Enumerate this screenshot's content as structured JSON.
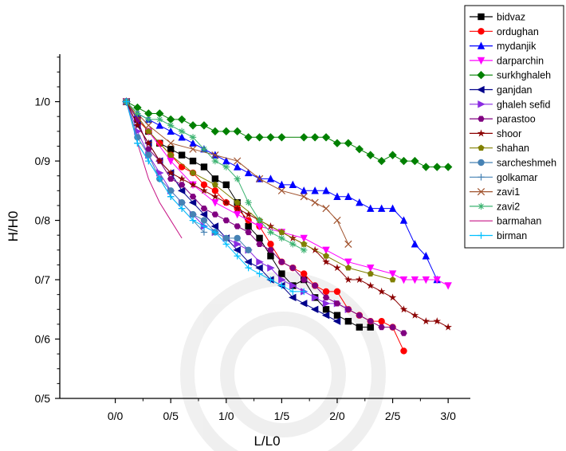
{
  "chart_data": {
    "type": "line",
    "xlabel": "L/L0",
    "ylabel": "H/H0",
    "xlim": [
      -0.5,
      3.2
    ],
    "ylim": [
      0.5,
      1.08
    ],
    "x_ticks": [
      0,
      0.5,
      1.0,
      1.5,
      2.0,
      2.5,
      3.0
    ],
    "x_tick_labels": [
      "0/0",
      "0/5",
      "1/0",
      "1/5",
      "2/0",
      "2/5",
      "3/0"
    ],
    "y_ticks": [
      0.5,
      0.6,
      0.7,
      0.8,
      0.9,
      1.0
    ],
    "y_tick_labels": [
      "0/5",
      "0/6",
      "0/7",
      "0/8",
      "0/9",
      "1/0"
    ],
    "grid": false,
    "legend_position": "top-right",
    "series": [
      {
        "name": "bidvaz",
        "color": "#000000",
        "marker": "square",
        "x": [
          0.1,
          0.2,
          0.3,
          0.4,
          0.5,
          0.6,
          0.7,
          0.8,
          0.9,
          1.0,
          1.1,
          1.2,
          1.3,
          1.4,
          1.5,
          1.6,
          1.7,
          1.8,
          1.9,
          2.0,
          2.1,
          2.2,
          2.3
        ],
        "y": [
          1.0,
          0.97,
          0.95,
          0.93,
          0.92,
          0.91,
          0.9,
          0.89,
          0.87,
          0.86,
          0.83,
          0.79,
          0.77,
          0.74,
          0.71,
          0.69,
          0.7,
          0.67,
          0.65,
          0.64,
          0.63,
          0.62,
          0.62
        ]
      },
      {
        "name": "ordughan",
        "color": "#ff0000",
        "marker": "circle",
        "x": [
          0.1,
          0.2,
          0.3,
          0.4,
          0.5,
          0.6,
          0.7,
          0.8,
          0.9,
          1.0,
          1.1,
          1.2,
          1.3,
          1.4,
          1.5,
          1.6,
          1.7,
          1.8,
          1.9,
          2.0,
          2.1,
          2.2,
          2.3,
          2.4,
          2.5,
          2.6
        ],
        "y": [
          1.0,
          0.97,
          0.95,
          0.93,
          0.91,
          0.89,
          0.88,
          0.86,
          0.85,
          0.83,
          0.82,
          0.8,
          0.79,
          0.76,
          0.73,
          0.72,
          0.71,
          0.69,
          0.68,
          0.68,
          0.65,
          0.64,
          0.63,
          0.63,
          0.62,
          0.58
        ]
      },
      {
        "name": "mydanjik",
        "color": "#0000ff",
        "marker": "triangle-up",
        "x": [
          0.1,
          0.2,
          0.3,
          0.4,
          0.5,
          0.6,
          0.7,
          0.8,
          0.9,
          1.0,
          1.1,
          1.2,
          1.3,
          1.4,
          1.5,
          1.6,
          1.7,
          1.8,
          1.9,
          2.0,
          2.1,
          2.2,
          2.3,
          2.4,
          2.5,
          2.6,
          2.7,
          2.8,
          2.9
        ],
        "y": [
          1.0,
          0.98,
          0.97,
          0.96,
          0.95,
          0.94,
          0.93,
          0.92,
          0.91,
          0.9,
          0.89,
          0.88,
          0.87,
          0.87,
          0.86,
          0.86,
          0.85,
          0.85,
          0.85,
          0.84,
          0.84,
          0.83,
          0.82,
          0.82,
          0.82,
          0.8,
          0.76,
          0.74,
          0.7
        ]
      },
      {
        "name": "darparchin",
        "color": "#ff00ff",
        "marker": "triangle-down",
        "x": [
          0.1,
          0.3,
          0.5,
          0.7,
          0.9,
          1.1,
          1.3,
          1.5,
          1.7,
          1.9,
          2.1,
          2.3,
          2.5,
          2.6,
          2.7,
          2.8,
          2.9,
          3.0
        ],
        "y": [
          1.0,
          0.95,
          0.9,
          0.86,
          0.83,
          0.81,
          0.79,
          0.78,
          0.77,
          0.75,
          0.73,
          0.72,
          0.71,
          0.7,
          0.7,
          0.7,
          0.7,
          0.69
        ]
      },
      {
        "name": "surkhghaleh",
        "color": "#008000",
        "marker": "diamond",
        "x": [
          0.1,
          0.2,
          0.3,
          0.4,
          0.5,
          0.6,
          0.7,
          0.8,
          0.9,
          1.0,
          1.1,
          1.2,
          1.3,
          1.4,
          1.5,
          1.7,
          1.8,
          1.9,
          2.0,
          2.1,
          2.2,
          2.3,
          2.4,
          2.5,
          2.6,
          2.7,
          2.8,
          2.9,
          3.0
        ],
        "y": [
          1.0,
          0.99,
          0.98,
          0.98,
          0.97,
          0.97,
          0.96,
          0.96,
          0.95,
          0.95,
          0.95,
          0.94,
          0.94,
          0.94,
          0.94,
          0.94,
          0.94,
          0.94,
          0.93,
          0.93,
          0.92,
          0.91,
          0.9,
          0.91,
          0.9,
          0.9,
          0.89,
          0.89,
          0.89
        ]
      },
      {
        "name": "ganjdan",
        "color": "#00008b",
        "marker": "triangle-left",
        "x": [
          0.1,
          0.2,
          0.3,
          0.4,
          0.5,
          0.6,
          0.7,
          0.8,
          0.9,
          1.0,
          1.1,
          1.2,
          1.3,
          1.4,
          1.5,
          1.6,
          1.7,
          1.8,
          1.9,
          2.0
        ],
        "y": [
          1.0,
          0.96,
          0.93,
          0.9,
          0.88,
          0.85,
          0.83,
          0.81,
          0.79,
          0.77,
          0.75,
          0.73,
          0.72,
          0.7,
          0.69,
          0.67,
          0.66,
          0.65,
          0.64,
          0.63
        ]
      },
      {
        "name": "ghaleh sefid",
        "color": "#8a2be2",
        "marker": "triangle-right",
        "x": [
          0.1,
          0.2,
          0.3,
          0.4,
          0.5,
          0.6,
          0.7,
          0.8,
          0.9,
          1.0,
          1.1,
          1.2,
          1.3,
          1.4,
          1.5,
          1.6,
          1.7,
          1.8,
          1.9,
          2.0,
          2.1
        ],
        "y": [
          1.0,
          0.95,
          0.91,
          0.88,
          0.85,
          0.83,
          0.81,
          0.79,
          0.78,
          0.77,
          0.76,
          0.75,
          0.73,
          0.72,
          0.7,
          0.69,
          0.68,
          0.67,
          0.66,
          0.66,
          0.65
        ]
      },
      {
        "name": "parastoo",
        "color": "#800080",
        "marker": "hexagon",
        "x": [
          0.1,
          0.2,
          0.3,
          0.4,
          0.5,
          0.6,
          0.7,
          0.8,
          0.9,
          1.0,
          1.1,
          1.2,
          1.3,
          1.4,
          1.5,
          1.6,
          1.7,
          1.8,
          1.9,
          2.0,
          2.1,
          2.2,
          2.3,
          2.4,
          2.5,
          2.6
        ],
        "y": [
          1.0,
          0.97,
          0.92,
          0.9,
          0.87,
          0.86,
          0.84,
          0.82,
          0.81,
          0.8,
          0.79,
          0.78,
          0.76,
          0.75,
          0.73,
          0.72,
          0.7,
          0.69,
          0.67,
          0.66,
          0.65,
          0.64,
          0.63,
          0.62,
          0.62,
          0.61
        ]
      },
      {
        "name": "shoor",
        "color": "#8b0000",
        "marker": "star",
        "x": [
          0.1,
          0.2,
          0.3,
          0.4,
          0.5,
          0.6,
          0.7,
          0.8,
          0.9,
          1.0,
          1.1,
          1.2,
          1.3,
          1.4,
          1.5,
          1.6,
          1.7,
          1.8,
          1.9,
          2.0,
          2.1,
          2.2,
          2.3,
          2.4,
          2.5,
          2.6,
          2.7,
          2.8,
          2.9,
          3.0
        ],
        "y": [
          1.0,
          0.96,
          0.93,
          0.9,
          0.88,
          0.87,
          0.86,
          0.85,
          0.84,
          0.83,
          0.82,
          0.81,
          0.8,
          0.79,
          0.78,
          0.77,
          0.76,
          0.75,
          0.73,
          0.72,
          0.7,
          0.7,
          0.69,
          0.68,
          0.67,
          0.65,
          0.64,
          0.63,
          0.63,
          0.62
        ]
      },
      {
        "name": "shahan",
        "color": "#808000",
        "marker": "pentagon",
        "x": [
          0.1,
          0.3,
          0.5,
          0.7,
          0.9,
          1.1,
          1.3,
          1.5,
          1.7,
          1.9,
          2.1,
          2.3,
          2.5
        ],
        "y": [
          1.0,
          0.95,
          0.91,
          0.88,
          0.86,
          0.83,
          0.8,
          0.78,
          0.76,
          0.74,
          0.72,
          0.71,
          0.7
        ]
      },
      {
        "name": "sarcheshmeh",
        "color": "#4682b4",
        "marker": "circle",
        "x": [
          0.1,
          0.2,
          0.3,
          0.4,
          0.5,
          0.6,
          0.7,
          0.8,
          0.9,
          1.0,
          1.1,
          1.2
        ],
        "y": [
          1.0,
          0.94,
          0.91,
          0.87,
          0.85,
          0.83,
          0.81,
          0.8,
          0.78,
          0.77,
          0.77,
          0.75
        ]
      },
      {
        "name": "golkamar",
        "color": "#4682b4",
        "marker": "plus",
        "x": [
          0.1,
          0.2,
          0.3,
          0.4,
          0.5,
          0.6,
          0.7,
          0.8
        ],
        "y": [
          1.0,
          0.93,
          0.9,
          0.87,
          0.84,
          0.82,
          0.8,
          0.78
        ]
      },
      {
        "name": "zavi1",
        "color": "#a0522d",
        "marker": "x",
        "x": [
          0.1,
          0.3,
          0.5,
          0.7,
          0.9,
          1.1,
          1.3,
          1.5,
          1.7,
          1.8,
          1.9,
          2.0,
          2.1
        ],
        "y": [
          1.0,
          0.96,
          0.93,
          0.92,
          0.91,
          0.9,
          0.87,
          0.85,
          0.84,
          0.83,
          0.82,
          0.8,
          0.76
        ]
      },
      {
        "name": "zavi2",
        "color": "#3cb371",
        "marker": "asterisk",
        "x": [
          0.1,
          0.2,
          0.3,
          0.4,
          0.5,
          0.6,
          0.7,
          0.8,
          0.9,
          1.0,
          1.1,
          1.2,
          1.3,
          1.4,
          1.5,
          1.6,
          1.7
        ],
        "y": [
          1.0,
          0.98,
          0.97,
          0.97,
          0.96,
          0.95,
          0.94,
          0.92,
          0.9,
          0.89,
          0.87,
          0.83,
          0.8,
          0.78,
          0.77,
          0.76,
          0.75
        ]
      },
      {
        "name": "barmahan",
        "color": "#c71585",
        "marker": "none",
        "x": [
          0.1,
          0.2,
          0.3,
          0.4,
          0.5,
          0.6
        ],
        "y": [
          1.0,
          0.93,
          0.87,
          0.83,
          0.8,
          0.77
        ]
      },
      {
        "name": "birman",
        "color": "#00bfff",
        "marker": "plus",
        "x": [
          0.1,
          0.2,
          0.3,
          0.4,
          0.5,
          0.6,
          0.7,
          0.8,
          0.9,
          1.0,
          1.1,
          1.2,
          1.3,
          1.4,
          1.5,
          1.6,
          1.7
        ],
        "y": [
          1.0,
          0.93,
          0.9,
          0.87,
          0.84,
          0.82,
          0.8,
          0.79,
          0.78,
          0.76,
          0.74,
          0.72,
          0.71,
          0.7,
          0.69,
          0.68,
          0.68
        ]
      }
    ]
  }
}
